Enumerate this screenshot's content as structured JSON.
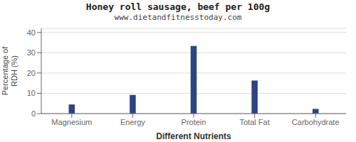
{
  "chart_data": {
    "type": "bar",
    "title": "Honey roll sausage, beef per 100g",
    "subtitle": "www.dietandfitnesstoday.com",
    "xlabel": "Different Nutrients",
    "ylabel": "Percentage of\nRDH (%)",
    "categories": [
      "Magnesium",
      "Energy",
      "Protein",
      "Total Fat",
      "Carbohydrate"
    ],
    "values": [
      4.5,
      9.2,
      33.3,
      16.3,
      2.3
    ],
    "color": "#2e4482",
    "ylim": [
      0,
      42
    ],
    "yticks": [
      0,
      10,
      20,
      30,
      40
    ],
    "grid": true
  }
}
